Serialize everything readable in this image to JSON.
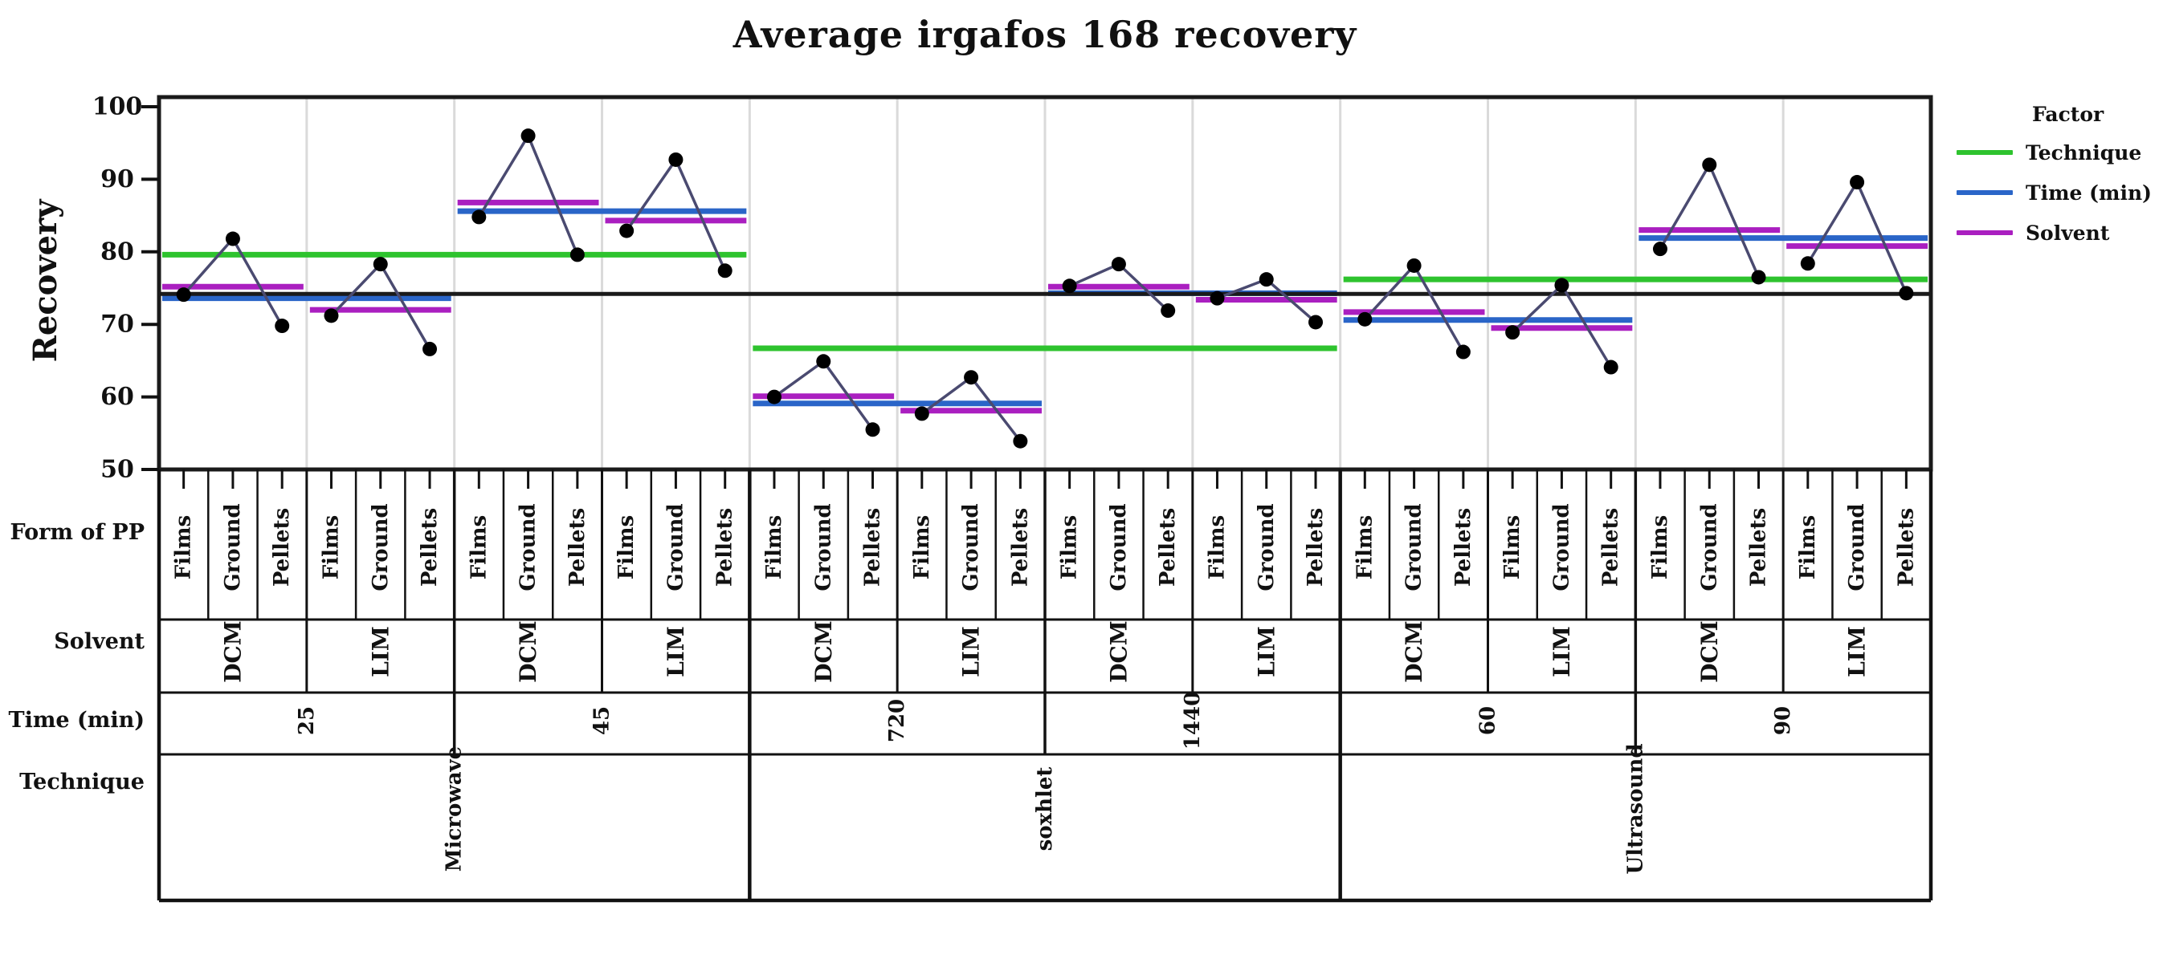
{
  "chart_data": {
    "type": "line",
    "subtype": "main-effects-interaction-plot",
    "title": "Average irgafos 168 recovery",
    "ylabel": "Recovery",
    "ylim": [
      50,
      100
    ],
    "yticks": [
      100,
      90,
      80,
      70,
      60,
      50
    ],
    "grid": "panel-separators-only",
    "legend_position": "right",
    "grand_mean": 74.2,
    "forms": [
      "Films",
      "Ground",
      "Pellets"
    ],
    "factor_rows": [
      "Form of PP",
      "Solvent",
      "Time (min)",
      "Technique"
    ],
    "legend": {
      "title": "Factor",
      "entries": [
        {
          "label": "Technique",
          "color": "#2EC32E"
        },
        {
          "label": "Time (min)",
          "color": "#2A65C8"
        },
        {
          "label": "Solvent",
          "color": "#AA1FC0"
        }
      ]
    },
    "colors": {
      "technique_mean_line": "#2EC32E",
      "time_mean_line": "#2A65C8",
      "solvent_mean_line": "#AA1FC0",
      "grand_mean_line": "#1A1A1A",
      "data_point": "#000000",
      "connector_line": "#4A4A70",
      "panel_separator": "#DADADA",
      "frame": "#1A1A1A"
    },
    "techniques": [
      {
        "name": "Microwave",
        "mean": 79.6,
        "times": [
          {
            "label": "25",
            "mean": 73.6,
            "solvents": [
              {
                "name": "DCM",
                "mean": 75.2,
                "points": [
                  74.1,
                  81.8,
                  69.8
                ]
              },
              {
                "name": "LIM",
                "mean": 72.0,
                "points": [
                  71.2,
                  78.3,
                  66.6
                ]
              }
            ]
          },
          {
            "label": "45",
            "mean": 85.6,
            "solvents": [
              {
                "name": "DCM",
                "mean": 86.8,
                "points": [
                  84.8,
                  96.0,
                  79.6
                ]
              },
              {
                "name": "LIM",
                "mean": 84.3,
                "points": [
                  82.9,
                  92.7,
                  77.4
                ]
              }
            ]
          }
        ]
      },
      {
        "name": "soxhlet",
        "mean": 66.7,
        "times": [
          {
            "label": "720",
            "mean": 59.1,
            "solvents": [
              {
                "name": "DCM",
                "mean": 60.1,
                "points": [
                  60.0,
                  64.9,
                  55.5
                ]
              },
              {
                "name": "LIM",
                "mean": 58.1,
                "points": [
                  57.7,
                  62.7,
                  53.9
                ]
              }
            ]
          },
          {
            "label": "1440",
            "mean": 74.3,
            "solvents": [
              {
                "name": "DCM",
                "mean": 75.2,
                "points": [
                  75.3,
                  78.3,
                  71.9
                ]
              },
              {
                "name": "LIM",
                "mean": 73.4,
                "points": [
                  73.6,
                  76.2,
                  70.3
                ]
              }
            ]
          }
        ]
      },
      {
        "name": "Ultrasound",
        "mean": 76.2,
        "times": [
          {
            "label": "60",
            "mean": 70.6,
            "solvents": [
              {
                "name": "DCM",
                "mean": 71.7,
                "points": [
                  70.7,
                  78.1,
                  66.2
                ]
              },
              {
                "name": "LIM",
                "mean": 69.5,
                "points": [
                  68.9,
                  75.4,
                  64.1
                ]
              }
            ]
          },
          {
            "label": "90",
            "mean": 81.9,
            "solvents": [
              {
                "name": "DCM",
                "mean": 83.0,
                "points": [
                  80.4,
                  92.0,
                  76.5
                ]
              },
              {
                "name": "LIM",
                "mean": 80.8,
                "points": [
                  78.4,
                  89.6,
                  74.3
                ]
              }
            ]
          }
        ]
      }
    ]
  }
}
